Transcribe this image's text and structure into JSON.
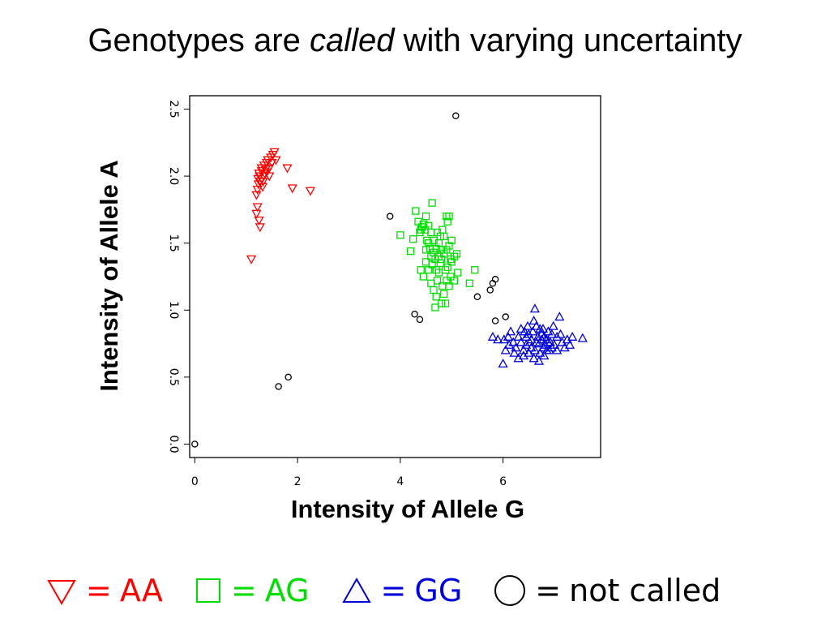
{
  "slide": {
    "title_prefix": "Genotypes are ",
    "title_emphasis": "called",
    "title_suffix": " with varying uncertainty"
  },
  "legend": [
    {
      "symbol": "triangle-down",
      "eq": "=",
      "label": "AA",
      "color": "#ff0000"
    },
    {
      "symbol": "square",
      "eq": "=",
      "label": "AG",
      "color": "#00dd00"
    },
    {
      "symbol": "triangle-up",
      "eq": "=",
      "label": "GG",
      "color": "#0000dd"
    },
    {
      "symbol": "circle",
      "eq": "=",
      "label": "not called",
      "color": "#000000"
    }
  ],
  "chart_data": {
    "type": "scatter",
    "title": "",
    "xlabel": "Intensity of Allele G",
    "ylabel": "Intensity of Allele A",
    "xlim": [
      -0.1,
      7.9
    ],
    "ylim": [
      -0.1,
      2.6
    ],
    "xticks": [
      "0",
      "2",
      "4",
      "6"
    ],
    "yticks": [
      "0.0",
      "0.5",
      "1.0",
      "1.5",
      "2.0",
      "2.5"
    ],
    "xtick_values": [
      0,
      2,
      4,
      6
    ],
    "ytick_values": [
      0.0,
      0.5,
      1.0,
      1.5,
      2.0,
      2.5
    ],
    "grid": false,
    "series": [
      {
        "name": "AA",
        "marker": "triangle-down",
        "color": "#ff0000",
        "points": [
          [
            1.1,
            1.38
          ],
          [
            1.2,
            1.72
          ],
          [
            1.22,
            1.77
          ],
          [
            1.25,
            1.67
          ],
          [
            1.27,
            1.62
          ],
          [
            1.2,
            1.86
          ],
          [
            1.22,
            1.9
          ],
          [
            1.24,
            1.94
          ],
          [
            1.23,
            1.98
          ],
          [
            1.26,
            2.0
          ],
          [
            1.25,
            2.02
          ],
          [
            1.28,
            1.96
          ],
          [
            1.3,
            2.04
          ],
          [
            1.32,
            1.92
          ],
          [
            1.34,
            2.0
          ],
          [
            1.3,
            2.06
          ],
          [
            1.35,
            2.08
          ],
          [
            1.38,
            2.05
          ],
          [
            1.4,
            2.1
          ],
          [
            1.42,
            2.12
          ],
          [
            1.45,
            2.06
          ],
          [
            1.48,
            2.14
          ],
          [
            1.5,
            2.1
          ],
          [
            1.52,
            2.16
          ],
          [
            1.55,
            2.18
          ],
          [
            1.58,
            2.12
          ],
          [
            1.36,
            2.02
          ],
          [
            1.4,
            2.03
          ],
          [
            1.33,
            1.96
          ],
          [
            1.45,
            2.0
          ],
          [
            1.8,
            2.06
          ],
          [
            1.9,
            1.91
          ],
          [
            2.25,
            1.89
          ]
        ]
      },
      {
        "name": "AG",
        "marker": "square",
        "color": "#00dd00",
        "points": [
          [
            4.0,
            1.56
          ],
          [
            4.2,
            1.44
          ],
          [
            4.25,
            1.53
          ],
          [
            4.3,
            1.74
          ],
          [
            4.35,
            1.66
          ],
          [
            4.4,
            1.6
          ],
          [
            4.45,
            1.64
          ],
          [
            4.5,
            1.7
          ],
          [
            4.55,
            1.63
          ],
          [
            4.6,
            1.58
          ],
          [
            4.62,
            1.8
          ],
          [
            4.65,
            1.52
          ],
          [
            4.7,
            1.46
          ],
          [
            4.72,
            1.58
          ],
          [
            4.75,
            1.4
          ],
          [
            4.78,
            1.35
          ],
          [
            4.8,
            1.45
          ],
          [
            4.82,
            1.6
          ],
          [
            4.85,
            1.55
          ],
          [
            4.88,
            1.3
          ],
          [
            4.9,
            1.7
          ],
          [
            4.92,
            1.66
          ],
          [
            4.95,
            1.48
          ],
          [
            4.98,
            1.25
          ],
          [
            5.0,
            1.36
          ],
          [
            5.05,
            1.4
          ],
          [
            5.1,
            1.42
          ],
          [
            5.12,
            1.28
          ],
          [
            4.5,
            1.36
          ],
          [
            4.55,
            1.3
          ],
          [
            4.58,
            1.46
          ],
          [
            4.6,
            1.4
          ],
          [
            4.62,
            1.34
          ],
          [
            4.65,
            1.43
          ],
          [
            4.68,
            1.38
          ],
          [
            4.7,
            1.3
          ],
          [
            4.72,
            1.22
          ],
          [
            4.75,
            1.5
          ],
          [
            4.78,
            1.55
          ],
          [
            4.8,
            1.38
          ],
          [
            4.82,
            1.18
          ],
          [
            4.85,
            1.12
          ],
          [
            4.88,
            1.05
          ],
          [
            4.9,
            1.22
          ],
          [
            4.92,
            1.32
          ],
          [
            4.95,
            1.18
          ],
          [
            4.98,
            1.38
          ],
          [
            5.0,
            1.52
          ],
          [
            4.68,
            1.02
          ],
          [
            4.8,
            1.05
          ],
          [
            4.4,
            1.3
          ],
          [
            4.45,
            1.25
          ],
          [
            4.5,
            1.45
          ],
          [
            4.52,
            1.52
          ],
          [
            4.48,
            1.6
          ],
          [
            4.42,
            1.62
          ],
          [
            4.38,
            1.58
          ],
          [
            5.35,
            1.2
          ],
          [
            5.45,
            1.3
          ],
          [
            4.6,
            1.2
          ],
          [
            4.65,
            1.15
          ],
          [
            4.7,
            1.1
          ],
          [
            4.75,
            1.28
          ],
          [
            5.05,
            1.22
          ],
          [
            4.85,
            1.42
          ],
          [
            4.9,
            1.45
          ],
          [
            4.55,
            1.5
          ],
          [
            4.95,
            1.7
          ]
        ]
      },
      {
        "name": "GG",
        "marker": "triangle-up",
        "color": "#0000dd",
        "points": [
          [
            5.8,
            0.8
          ],
          [
            5.9,
            0.78
          ],
          [
            6.0,
            0.6
          ],
          [
            6.05,
            0.7
          ],
          [
            6.1,
            0.8
          ],
          [
            6.15,
            0.84
          ],
          [
            6.2,
            0.76
          ],
          [
            6.25,
            0.72
          ],
          [
            6.3,
            0.8
          ],
          [
            6.35,
            0.86
          ],
          [
            6.4,
            0.7
          ],
          [
            6.45,
            0.74
          ],
          [
            6.5,
            0.82
          ],
          [
            6.55,
            0.78
          ],
          [
            6.6,
            0.92
          ],
          [
            6.62,
            1.01
          ],
          [
            6.65,
            0.88
          ],
          [
            6.7,
            0.75
          ],
          [
            6.72,
            0.68
          ],
          [
            6.75,
            0.82
          ],
          [
            6.78,
            0.86
          ],
          [
            6.8,
            0.8
          ],
          [
            6.82,
            0.74
          ],
          [
            6.85,
            0.78
          ],
          [
            6.88,
            0.84
          ],
          [
            6.9,
            0.7
          ],
          [
            6.92,
            0.76
          ],
          [
            6.95,
            0.82
          ],
          [
            6.98,
            0.88
          ],
          [
            7.0,
            0.74
          ],
          [
            7.05,
            0.8
          ],
          [
            7.1,
            0.95
          ],
          [
            7.15,
            0.76
          ],
          [
            7.2,
            0.72
          ],
          [
            7.25,
            0.78
          ],
          [
            7.3,
            0.74
          ],
          [
            7.35,
            0.8
          ],
          [
            7.55,
            0.79
          ],
          [
            6.3,
            0.64
          ],
          [
            6.4,
            0.66
          ],
          [
            6.5,
            0.68
          ],
          [
            6.6,
            0.64
          ],
          [
            6.7,
            0.62
          ],
          [
            6.8,
            0.66
          ],
          [
            6.55,
            0.72
          ],
          [
            6.65,
            0.76
          ],
          [
            6.75,
            0.78
          ],
          [
            6.85,
            0.7
          ],
          [
            6.95,
            0.72
          ],
          [
            6.48,
            0.88
          ],
          [
            6.58,
            0.84
          ],
          [
            6.68,
            0.8
          ],
          [
            6.78,
            0.72
          ],
          [
            6.88,
            0.76
          ],
          [
            6.22,
            0.68
          ],
          [
            6.12,
            0.74
          ],
          [
            6.02,
            0.78
          ],
          [
            6.35,
            0.76
          ],
          [
            6.45,
            0.8
          ],
          [
            7.05,
            0.7
          ],
          [
            7.12,
            0.82
          ],
          [
            6.72,
            0.86
          ],
          [
            6.62,
            0.7
          ],
          [
            6.52,
            0.76
          ],
          [
            6.42,
            0.84
          ]
        ]
      },
      {
        "name": "not called",
        "marker": "circle",
        "color": "#000000",
        "points": [
          [
            0.0,
            0.0
          ],
          [
            1.63,
            0.43
          ],
          [
            1.82,
            0.5
          ],
          [
            3.8,
            1.7
          ],
          [
            4.28,
            0.97
          ],
          [
            4.38,
            0.93
          ],
          [
            5.08,
            2.45
          ],
          [
            5.5,
            1.1
          ],
          [
            5.75,
            1.15
          ],
          [
            5.8,
            1.2
          ],
          [
            5.85,
            1.23
          ],
          [
            5.85,
            0.92
          ],
          [
            6.05,
            0.95
          ]
        ]
      }
    ]
  }
}
